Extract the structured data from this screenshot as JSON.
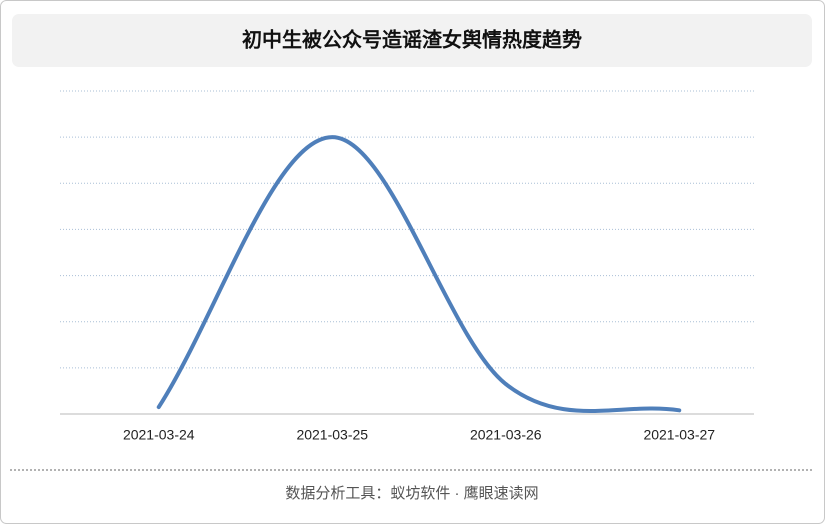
{
  "chart_data": {
    "type": "line",
    "title": "初中生被公众号造谣渣女舆情热度趋势",
    "categories": [
      "2021-03-24",
      "2021-03-25",
      "2021-03-26",
      "2021-03-27"
    ],
    "values": [
      0.15,
      6.0,
      0.65,
      0.08
    ],
    "color": "#4f7fba",
    "ylim": [
      0,
      7
    ],
    "yticks": [
      0,
      1,
      2,
      3,
      4,
      5,
      6,
      7
    ],
    "grid": true,
    "ytick_labels": false,
    "smooth": true
  },
  "footer": "数据分析工具：蚁坊软件 · 鹰眼速读网"
}
